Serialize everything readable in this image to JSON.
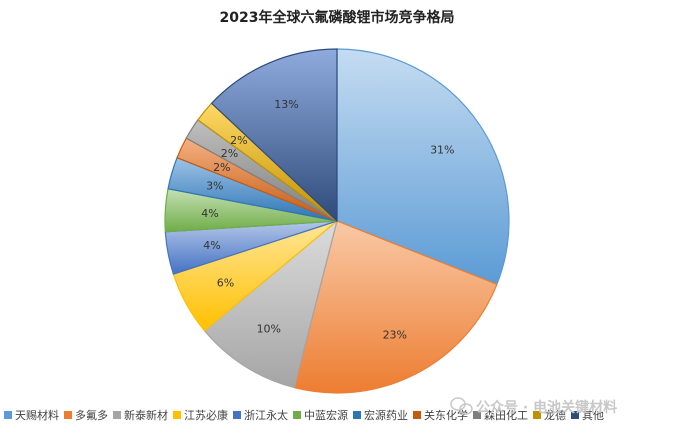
{
  "chart_data": {
    "type": "pie",
    "title": "2023年全球六氟磷酸锂市场竞争格局",
    "slices": [
      {
        "name": "天赐材料",
        "value": 31,
        "label": "31%",
        "color": "#5b9bd5",
        "light": "#c5dcf1"
      },
      {
        "name": "多氟多",
        "value": 23,
        "label": "23%",
        "color": "#ed7d31",
        "light": "#f9c9a6"
      },
      {
        "name": "新泰新材",
        "value": 10,
        "label": "10%",
        "color": "#a5a5a5",
        "light": "#dcdcdc"
      },
      {
        "name": "江苏必康",
        "value": 6,
        "label": "6%",
        "color": "#ffc000",
        "light": "#ffe699"
      },
      {
        "name": "浙江永太",
        "value": 4,
        "label": "4%",
        "color": "#4472c4",
        "light": "#b4c7e7"
      },
      {
        "name": "中蓝宏源",
        "value": 4,
        "label": "4%",
        "color": "#70ad47",
        "light": "#c5e0b4"
      },
      {
        "name": "宏源药业",
        "value": 3,
        "label": "3%",
        "color": "#2e75b6",
        "light": "#9dc3e6"
      },
      {
        "name": "关东化学",
        "value": 2,
        "label": "2%",
        "color": "#c55a11",
        "light": "#f4b183"
      },
      {
        "name": "森田化工",
        "value": 2,
        "label": "2%",
        "color": "#7f7f7f",
        "light": "#bfbfbf"
      },
      {
        "name": "龙德",
        "value": 2,
        "label": "2%",
        "color": "#bf9000",
        "light": "#ffd966"
      },
      {
        "name": "其他",
        "value": 13,
        "label": "13%",
        "color": "#2f4b7c",
        "light": "#8faadc"
      }
    ],
    "legend_position": "bottom"
  },
  "watermark": {
    "text": "公众号 · 电池关键材料",
    "icon": "wechat-icon"
  }
}
